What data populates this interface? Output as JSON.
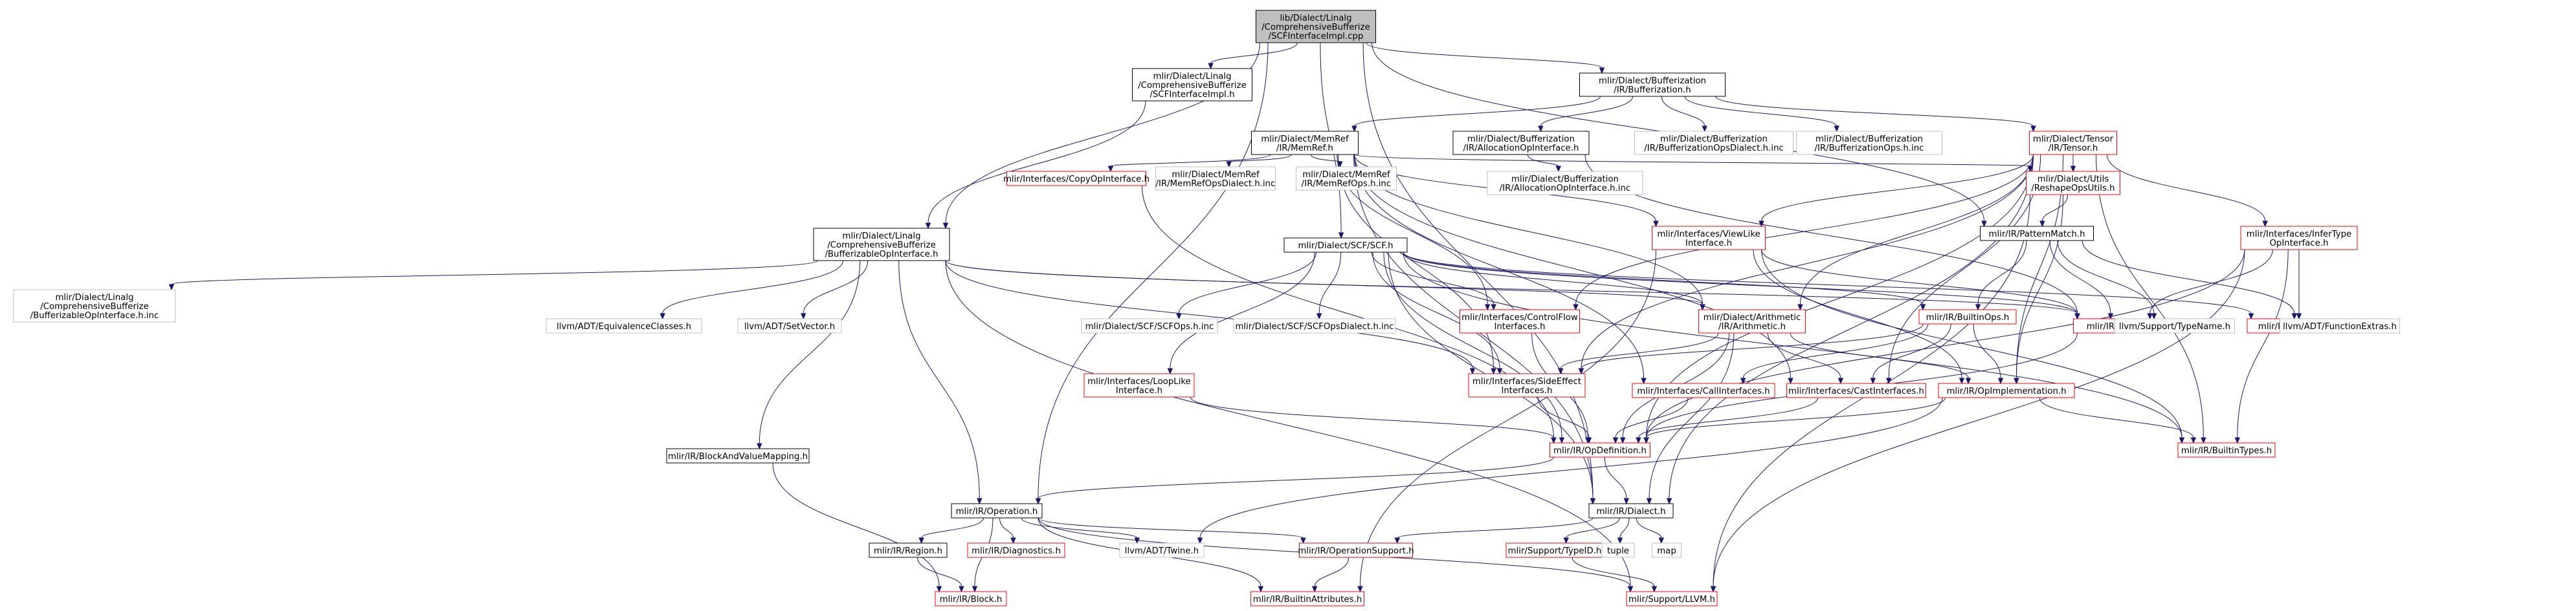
{
  "colors": {
    "edge": "#191970",
    "root_fill": "#bfbfbf",
    "root_border": "#000000",
    "plain_border": "#000000",
    "external_border": "#bfbfbf",
    "truncated_border": "#ff0000",
    "node_fill": "#ffffff",
    "text": "#000000"
  },
  "nodes": [
    {
      "id": "n0",
      "lines": [
        "lib/Dialect/Linalg",
        "/ComprehensiveBufferize",
        "/SCFInterfaceImpl.cpp"
      ],
      "kind": "root"
    },
    {
      "id": "n1",
      "lines": [
        "mlir/Dialect/Linalg",
        "/ComprehensiveBufferize",
        "/SCFInterfaceImpl.h"
      ],
      "kind": "plain"
    },
    {
      "id": "n2",
      "lines": [
        "mlir/Dialect/Bufferization",
        "/IR/Bufferization.h"
      ],
      "kind": "plain"
    },
    {
      "id": "n3",
      "lines": [
        "mlir/Dialect/Linalg",
        "/ComprehensiveBufferize",
        "/BufferizableOpInterface.h"
      ],
      "kind": "plain"
    },
    {
      "id": "n4",
      "lines": [
        "mlir/Dialect/SCF/SCF.h"
      ],
      "kind": "plain"
    },
    {
      "id": "n5",
      "lines": [
        "mlir/Dialect/MemRef",
        "/IR/MemRef.h"
      ],
      "kind": "plain"
    },
    {
      "id": "n6",
      "lines": [
        "mlir/Dialect/Bufferization",
        "/IR/AllocationOpInterface.h"
      ],
      "kind": "plain"
    },
    {
      "id": "n7",
      "lines": [
        "mlir/Dialect/Bufferization",
        "/IR/BufferizationOpsDialect.h.inc"
      ],
      "kind": "external"
    },
    {
      "id": "n8",
      "lines": [
        "mlir/Dialect/Bufferization",
        "/IR/BufferizationOps.h.inc"
      ],
      "kind": "external"
    },
    {
      "id": "n9",
      "lines": [
        "mlir/Dialect/Tensor",
        "/IR/Tensor.h"
      ],
      "kind": "truncated"
    },
    {
      "id": "n10",
      "lines": [
        "mlir/Interfaces/CopyOpInterface.h"
      ],
      "kind": "truncated"
    },
    {
      "id": "n11",
      "lines": [
        "mlir/Dialect/MemRef",
        "/IR/MemRefOpsDialect.h.inc"
      ],
      "kind": "external"
    },
    {
      "id": "n12",
      "lines": [
        "mlir/Dialect/MemRef",
        "/IR/MemRefOps.h.inc"
      ],
      "kind": "external"
    },
    {
      "id": "n13",
      "lines": [
        "mlir/Dialect/Bufferization",
        "/IR/AllocationOpInterface.h.inc"
      ],
      "kind": "external"
    },
    {
      "id": "n14",
      "lines": [
        "mlir/Dialect/Utils",
        "/ReshapeOpsUtils.h"
      ],
      "kind": "truncated"
    },
    {
      "id": "n15",
      "lines": [
        "mlir/Interfaces/ViewLike",
        "Interface.h"
      ],
      "kind": "truncated"
    },
    {
      "id": "n16",
      "lines": [
        "mlir/IR/PatternMatch.h"
      ],
      "kind": "plain"
    },
    {
      "id": "n17",
      "lines": [
        "mlir/Interfaces/InferType",
        "OpInterface.h"
      ],
      "kind": "truncated"
    },
    {
      "id": "n18",
      "lines": [
        "mlir/Dialect/Linalg",
        "/ComprehensiveBufferize",
        "/BufferizableOpInterface.h.inc"
      ],
      "kind": "external"
    },
    {
      "id": "n19",
      "lines": [
        "llvm/ADT/EquivalenceClasses.h"
      ],
      "kind": "external"
    },
    {
      "id": "n20",
      "lines": [
        "llvm/ADT/SetVector.h"
      ],
      "kind": "external"
    },
    {
      "id": "n21",
      "lines": [
        "mlir/Dialect/SCF/SCFOps.h.inc"
      ],
      "kind": "external"
    },
    {
      "id": "n22",
      "lines": [
        "mlir/Dialect/SCF/SCFOpsDialect.h.inc"
      ],
      "kind": "external"
    },
    {
      "id": "n23",
      "lines": [
        "mlir/Interfaces/ControlFlow",
        "Interfaces.h"
      ],
      "kind": "truncated"
    },
    {
      "id": "n24",
      "lines": [
        "mlir/Dialect/Arithmetic",
        "/IR/Arithmetic.h"
      ],
      "kind": "truncated"
    },
    {
      "id": "n25",
      "lines": [
        "mlir/IR/BuiltinOps.h"
      ],
      "kind": "truncated"
    },
    {
      "id": "n26",
      "lines": [
        "mlir/IR/Builders.h"
      ],
      "kind": "truncated"
    },
    {
      "id": "n27",
      "lines": [
        "mlir/IR/Attributes.h"
      ],
      "kind": "truncated"
    },
    {
      "id": "n28",
      "lines": [
        "llvm/Support/TypeName.h"
      ],
      "kind": "external"
    },
    {
      "id": "n29",
      "lines": [
        "llvm/ADT/FunctionExtras.h"
      ],
      "kind": "external"
    },
    {
      "id": "n30",
      "lines": [
        "mlir/Interfaces/LoopLike",
        "Interface.h"
      ],
      "kind": "truncated"
    },
    {
      "id": "n31",
      "lines": [
        "mlir/Interfaces/SideEffect",
        "Interfaces.h"
      ],
      "kind": "truncated"
    },
    {
      "id": "n32",
      "lines": [
        "mlir/Interfaces/CallInterfaces.h"
      ],
      "kind": "truncated"
    },
    {
      "id": "n33",
      "lines": [
        "mlir/Interfaces/CastInterfaces.h"
      ],
      "kind": "truncated"
    },
    {
      "id": "n34",
      "lines": [
        "mlir/IR/OpImplementation.h"
      ],
      "kind": "truncated"
    },
    {
      "id": "n35",
      "lines": [
        "mlir/IR/BlockAndValueMapping.h"
      ],
      "kind": "plain"
    },
    {
      "id": "n36",
      "lines": [
        "mlir/IR/OpDefinition.h"
      ],
      "kind": "truncated"
    },
    {
      "id": "n37",
      "lines": [
        "mlir/IR/BuiltinTypes.h"
      ],
      "kind": "truncated"
    },
    {
      "id": "n38",
      "lines": [
        "mlir/IR/Operation.h"
      ],
      "kind": "plain"
    },
    {
      "id": "n39",
      "lines": [
        "mlir/IR/Dialect.h"
      ],
      "kind": "plain"
    },
    {
      "id": "n40",
      "lines": [
        "mlir/IR/Region.h"
      ],
      "kind": "plain"
    },
    {
      "id": "n41",
      "lines": [
        "mlir/IR/Diagnostics.h"
      ],
      "kind": "truncated"
    },
    {
      "id": "n42",
      "lines": [
        "llvm/ADT/Twine.h"
      ],
      "kind": "external"
    },
    {
      "id": "n43",
      "lines": [
        "mlir/IR/OperationSupport.h"
      ],
      "kind": "truncated"
    },
    {
      "id": "n44",
      "lines": [
        "mlir/Support/TypeID.h"
      ],
      "kind": "truncated"
    },
    {
      "id": "n45",
      "lines": [
        "tuple"
      ],
      "kind": "external"
    },
    {
      "id": "n46",
      "lines": [
        "map"
      ],
      "kind": "external"
    },
    {
      "id": "n47",
      "lines": [
        "mlir/IR/Block.h"
      ],
      "kind": "truncated"
    },
    {
      "id": "n48",
      "lines": [
        "mlir/IR/BuiltinAttributes.h"
      ],
      "kind": "truncated"
    },
    {
      "id": "n49",
      "lines": [
        "mlir/Support/LLVM.h"
      ],
      "kind": "truncated"
    }
  ],
  "edges": [
    [
      "n0",
      "n1"
    ],
    [
      "n0",
      "n2"
    ],
    [
      "n0",
      "n3"
    ],
    [
      "n0",
      "n4"
    ],
    [
      "n0",
      "n16"
    ],
    [
      "n0",
      "n38"
    ],
    [
      "n0",
      "n39"
    ],
    [
      "n1",
      "n3"
    ],
    [
      "n2",
      "n5"
    ],
    [
      "n2",
      "n6"
    ],
    [
      "n2",
      "n7"
    ],
    [
      "n2",
      "n8"
    ],
    [
      "n2",
      "n9"
    ],
    [
      "n5",
      "n10"
    ],
    [
      "n5",
      "n11"
    ],
    [
      "n5",
      "n12"
    ],
    [
      "n5",
      "n14"
    ],
    [
      "n5",
      "n15"
    ],
    [
      "n5",
      "n23"
    ],
    [
      "n5",
      "n24"
    ],
    [
      "n5",
      "n31"
    ],
    [
      "n5",
      "n32"
    ],
    [
      "n5",
      "n33"
    ],
    [
      "n5",
      "n39"
    ],
    [
      "n6",
      "n13"
    ],
    [
      "n6",
      "n26"
    ],
    [
      "n9",
      "n14"
    ],
    [
      "n9",
      "n15"
    ],
    [
      "n9",
      "n17"
    ],
    [
      "n9",
      "n23"
    ],
    [
      "n9",
      "n24"
    ],
    [
      "n9",
      "n31"
    ],
    [
      "n9",
      "n33"
    ],
    [
      "n9",
      "n34"
    ],
    [
      "n9",
      "n37"
    ],
    [
      "n9",
      "n39"
    ],
    [
      "n9",
      "n36"
    ],
    [
      "n10",
      "n36"
    ],
    [
      "n14",
      "n16"
    ],
    [
      "n14",
      "n34"
    ],
    [
      "n14",
      "n49"
    ],
    [
      "n15",
      "n26"
    ],
    [
      "n15",
      "n34"
    ],
    [
      "n15",
      "n37"
    ],
    [
      "n15",
      "n48"
    ],
    [
      "n16",
      "n26"
    ],
    [
      "n16",
      "n28"
    ],
    [
      "n16",
      "n29"
    ],
    [
      "n16",
      "n25"
    ],
    [
      "n17",
      "n27"
    ],
    [
      "n17",
      "n26"
    ],
    [
      "n17",
      "n36"
    ],
    [
      "n17",
      "n37"
    ],
    [
      "n17",
      "n49"
    ],
    [
      "n3",
      "n18"
    ],
    [
      "n3",
      "n19"
    ],
    [
      "n3",
      "n20"
    ],
    [
      "n3",
      "n35"
    ],
    [
      "n3",
      "n38"
    ],
    [
      "n3",
      "n24"
    ],
    [
      "n3",
      "n26"
    ],
    [
      "n3",
      "n49"
    ],
    [
      "n3",
      "n31"
    ],
    [
      "n4",
      "n21"
    ],
    [
      "n4",
      "n22"
    ],
    [
      "n4",
      "n23"
    ],
    [
      "n4",
      "n24"
    ],
    [
      "n4",
      "n25"
    ],
    [
      "n4",
      "n26"
    ],
    [
      "n4",
      "n27"
    ],
    [
      "n4",
      "n30"
    ],
    [
      "n4",
      "n31"
    ],
    [
      "n4",
      "n36"
    ],
    [
      "n4",
      "n37"
    ],
    [
      "n4",
      "n39"
    ],
    [
      "n23",
      "n36"
    ],
    [
      "n24",
      "n31"
    ],
    [
      "n24",
      "n33"
    ],
    [
      "n24",
      "n34"
    ],
    [
      "n24",
      "n36"
    ],
    [
      "n24",
      "n39"
    ],
    [
      "n25",
      "n31"
    ],
    [
      "n25",
      "n32"
    ],
    [
      "n25",
      "n33"
    ],
    [
      "n25",
      "n34"
    ],
    [
      "n26",
      "n36"
    ],
    [
      "n30",
      "n36"
    ],
    [
      "n31",
      "n36"
    ],
    [
      "n32",
      "n36"
    ],
    [
      "n33",
      "n36"
    ],
    [
      "n34",
      "n36"
    ],
    [
      "n34",
      "n37"
    ],
    [
      "n34",
      "n42"
    ],
    [
      "n35",
      "n47"
    ],
    [
      "n36",
      "n38"
    ],
    [
      "n36",
      "n39"
    ],
    [
      "n38",
      "n40"
    ],
    [
      "n38",
      "n41"
    ],
    [
      "n38",
      "n42"
    ],
    [
      "n38",
      "n43"
    ],
    [
      "n38",
      "n47"
    ],
    [
      "n38",
      "n48"
    ],
    [
      "n38",
      "n49"
    ],
    [
      "n39",
      "n43"
    ],
    [
      "n39",
      "n44"
    ],
    [
      "n39",
      "n45"
    ],
    [
      "n39",
      "n46"
    ],
    [
      "n40",
      "n47"
    ],
    [
      "n43",
      "n48"
    ],
    [
      "n44",
      "n49"
    ]
  ]
}
